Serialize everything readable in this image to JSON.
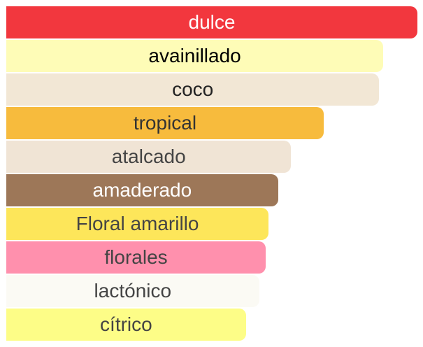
{
  "chart_data": {
    "type": "bar",
    "orientation": "horizontal",
    "xlim": [
      0,
      100
    ],
    "grid": false,
    "categories": [
      "dulce",
      "avainillado",
      "coco",
      "tropical",
      "atalcado",
      "amaderado",
      "Floral amarillo",
      "florales",
      "lactónico",
      "cítrico"
    ],
    "values": [
      100,
      91.7,
      90.7,
      77.2,
      69.3,
      66.1,
      63.8,
      63.1,
      61.5,
      58.3
    ],
    "colors": [
      "#f2373e",
      "#fefcb7",
      "#f2e7d5",
      "#f7bb3d",
      "#f0e4d5",
      "#9d7758",
      "#fde65a",
      "#ff90ad",
      "#fbfaf4",
      "#fdfd87"
    ],
    "text_colors": [
      "#ffffff",
      "#000000",
      "#222222",
      "#333333",
      "#444444",
      "#ffffff",
      "#444444",
      "#444444",
      "#444444",
      "#444444"
    ]
  }
}
